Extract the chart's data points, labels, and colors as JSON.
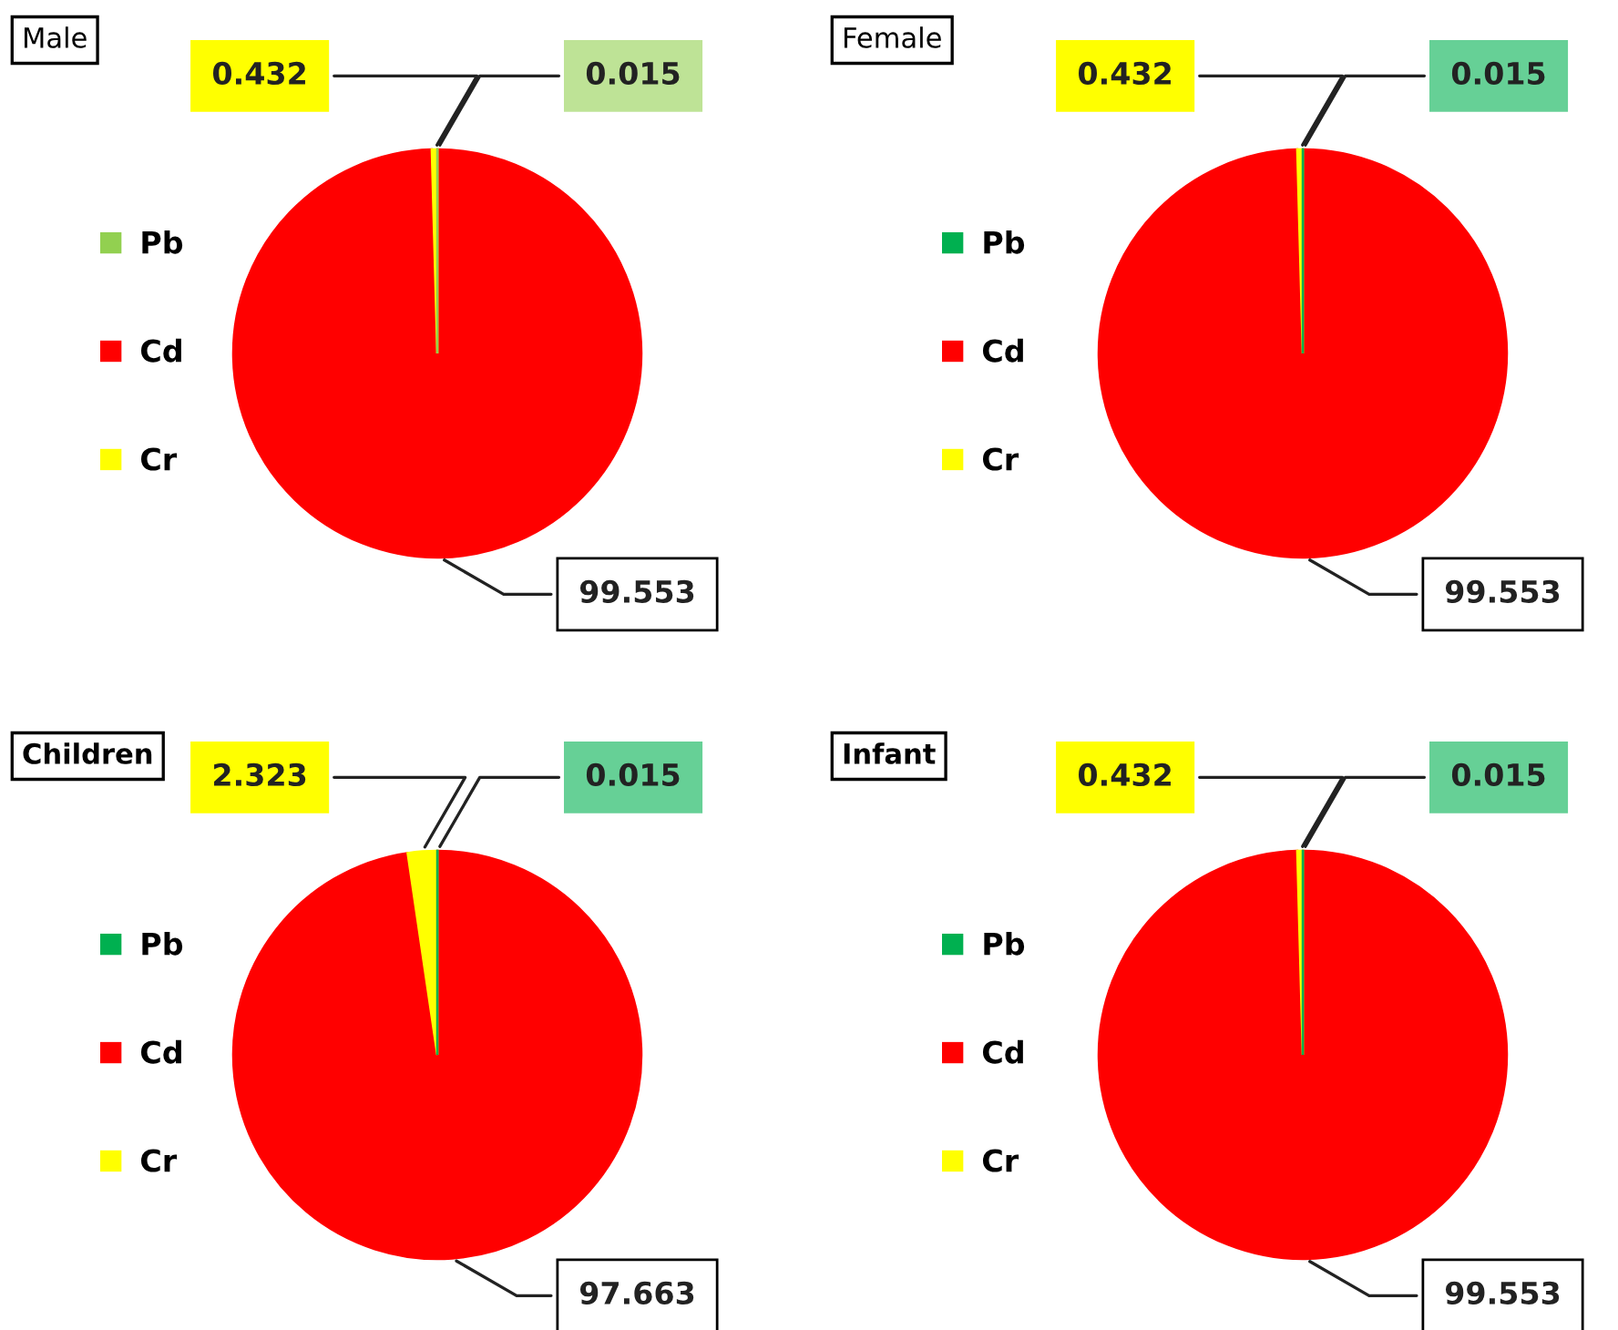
{
  "chart_data": [
    {
      "type": "pie",
      "title": "Male",
      "categories": [
        "Pb",
        "Cd",
        "Cr"
      ],
      "values": [
        0.015,
        99.553,
        0.432
      ],
      "colors": [
        "#92d050",
        "#ff0000",
        "#ffff00"
      ],
      "data_labels": true,
      "legend": "left"
    },
    {
      "type": "pie",
      "title": "Female",
      "categories": [
        "Pb",
        "Cd",
        "Cr"
      ],
      "values": [
        0.015,
        99.553,
        0.432
      ],
      "colors": [
        "#00b050",
        "#ff0000",
        "#ffff00"
      ],
      "data_labels": true,
      "legend": "left"
    },
    {
      "type": "pie",
      "title": "Children",
      "categories": [
        "Pb",
        "Cd",
        "Cr"
      ],
      "values": [
        0.015,
        97.663,
        2.323
      ],
      "colors": [
        "#00b050",
        "#ff0000",
        "#ffff00"
      ],
      "data_labels": true,
      "legend": "left"
    },
    {
      "type": "pie",
      "title": "Infant",
      "categories": [
        "Pb",
        "Cd",
        "Cr"
      ],
      "values": [
        0.015,
        99.553,
        0.432
      ],
      "colors": [
        "#00b050",
        "#ff0000",
        "#ffff00"
      ],
      "data_labels": true,
      "legend": "left"
    }
  ]
}
